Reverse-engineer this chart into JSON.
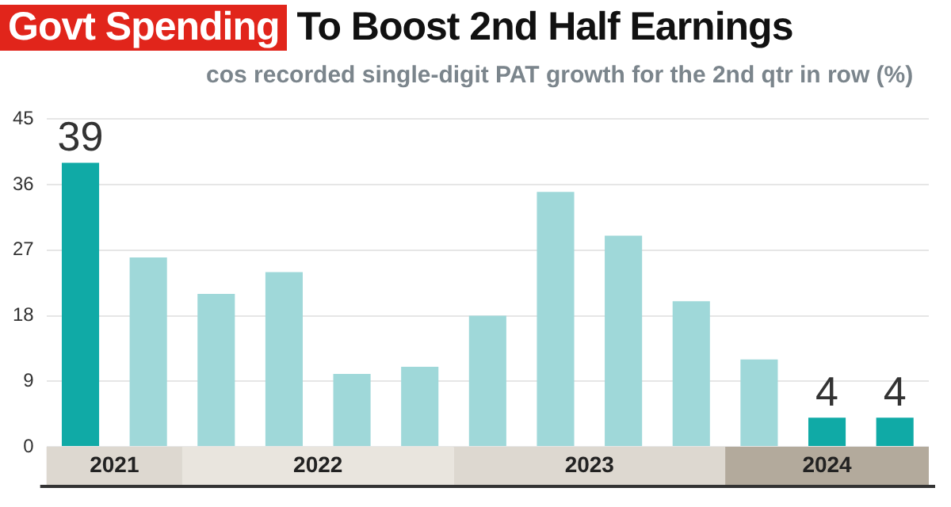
{
  "chart_data": {
    "type": "bar",
    "title": "Govt Spending To Boost 2nd Half Earnings",
    "subtitle": "cos recorded single-digit PAT growth for the 2nd qtr in row (%)",
    "categories": [
      null,
      null,
      null,
      null,
      null,
      null,
      null,
      null,
      null,
      null,
      null,
      null,
      null
    ],
    "annotations": [
      "2021",
      "2022",
      "2023",
      "2024"
    ],
    "values": [
      39,
      26,
      21,
      24,
      10,
      11,
      18,
      35,
      29,
      20,
      12,
      4,
      4
    ],
    "colors": [
      "#10aaa6",
      "#9fd8d9",
      "#9fd8d9",
      "#9fd8d9",
      "#9fd8d9",
      "#9fd8d9",
      "#9fd8d9",
      "#9fd8d9",
      "#9fd8d9",
      "#9fd8d9",
      "#9fd8d9",
      "#10aaa6",
      "#10aaa6"
    ],
    "value_labels": [
      "39",
      null,
      null,
      null,
      null,
      null,
      null,
      null,
      null,
      null,
      null,
      "4",
      "4"
    ],
    "ylim": [
      0,
      45
    ],
    "yticks": [
      0,
      9,
      18,
      27,
      36,
      45
    ],
    "grid": "y",
    "legend": false
  }
}
